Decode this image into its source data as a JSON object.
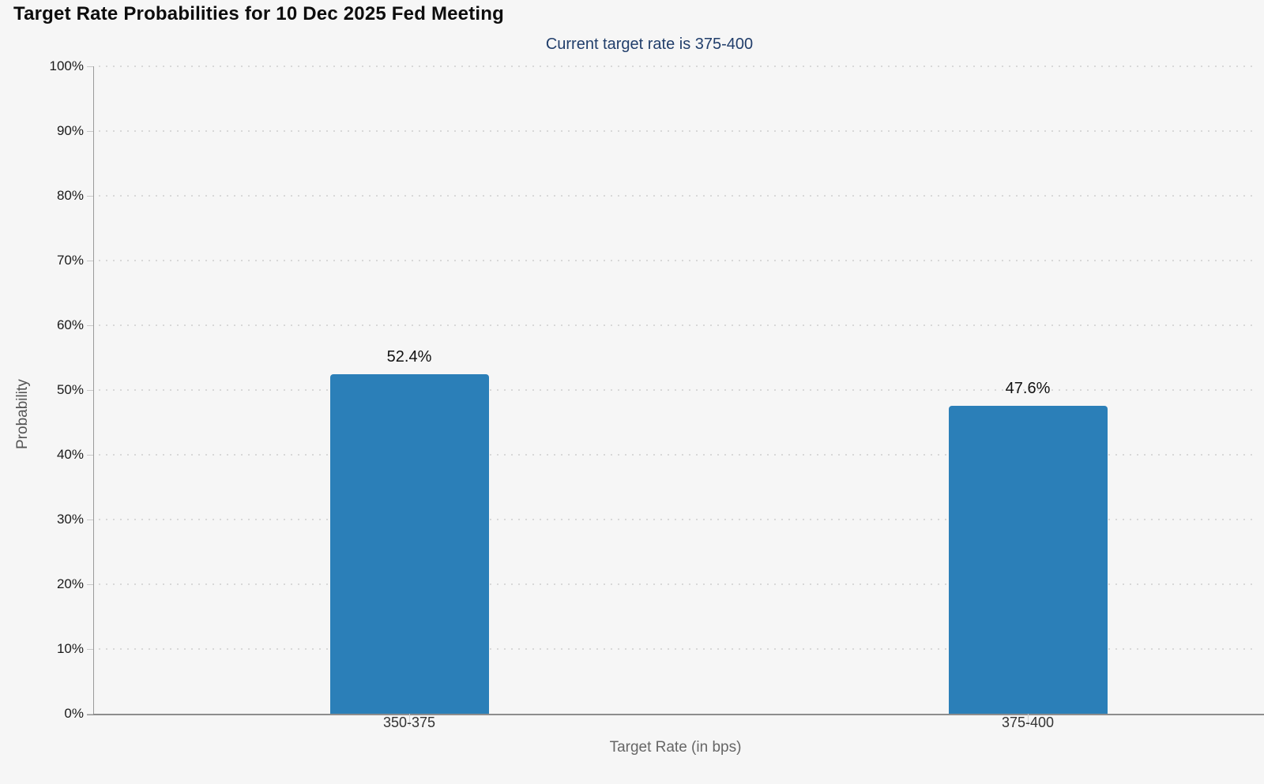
{
  "chart_data": {
    "type": "bar",
    "title": "Target Rate Probabilities for 10 Dec 2025 Fed Meeting",
    "subtitle": "Current target rate is 375-400",
    "categories": [
      "350-375",
      "375-400"
    ],
    "values": [
      52.4,
      47.6
    ],
    "value_labels": [
      "52.4%",
      "47.6%"
    ],
    "xlabel": "Target Rate (in bps)",
    "ylabel": "Probability",
    "ylim": [
      0,
      100
    ],
    "yticks": [
      0,
      10,
      20,
      30,
      40,
      50,
      60,
      70,
      80,
      90,
      100
    ],
    "ytick_labels": [
      "0%",
      "10%",
      "20%",
      "30%",
      "40%",
      "50%",
      "60%",
      "70%",
      "80%",
      "90%",
      "100%"
    ],
    "grid": "horizontal-dotted",
    "legend": "none",
    "bar_color": "#2b7fb8"
  },
  "colors": {
    "background": "#f6f6f6",
    "bar": "#2b7fb8",
    "title_text": "#0d0d0d",
    "subtitle_text": "#213e6b",
    "axis_line": "#8d8d8d",
    "gridline": "#d8d8d8",
    "tick": "#c9c9c9",
    "ytick_label": "#1a1a1a",
    "category_label": "#333333",
    "axis_title": "#666666"
  }
}
